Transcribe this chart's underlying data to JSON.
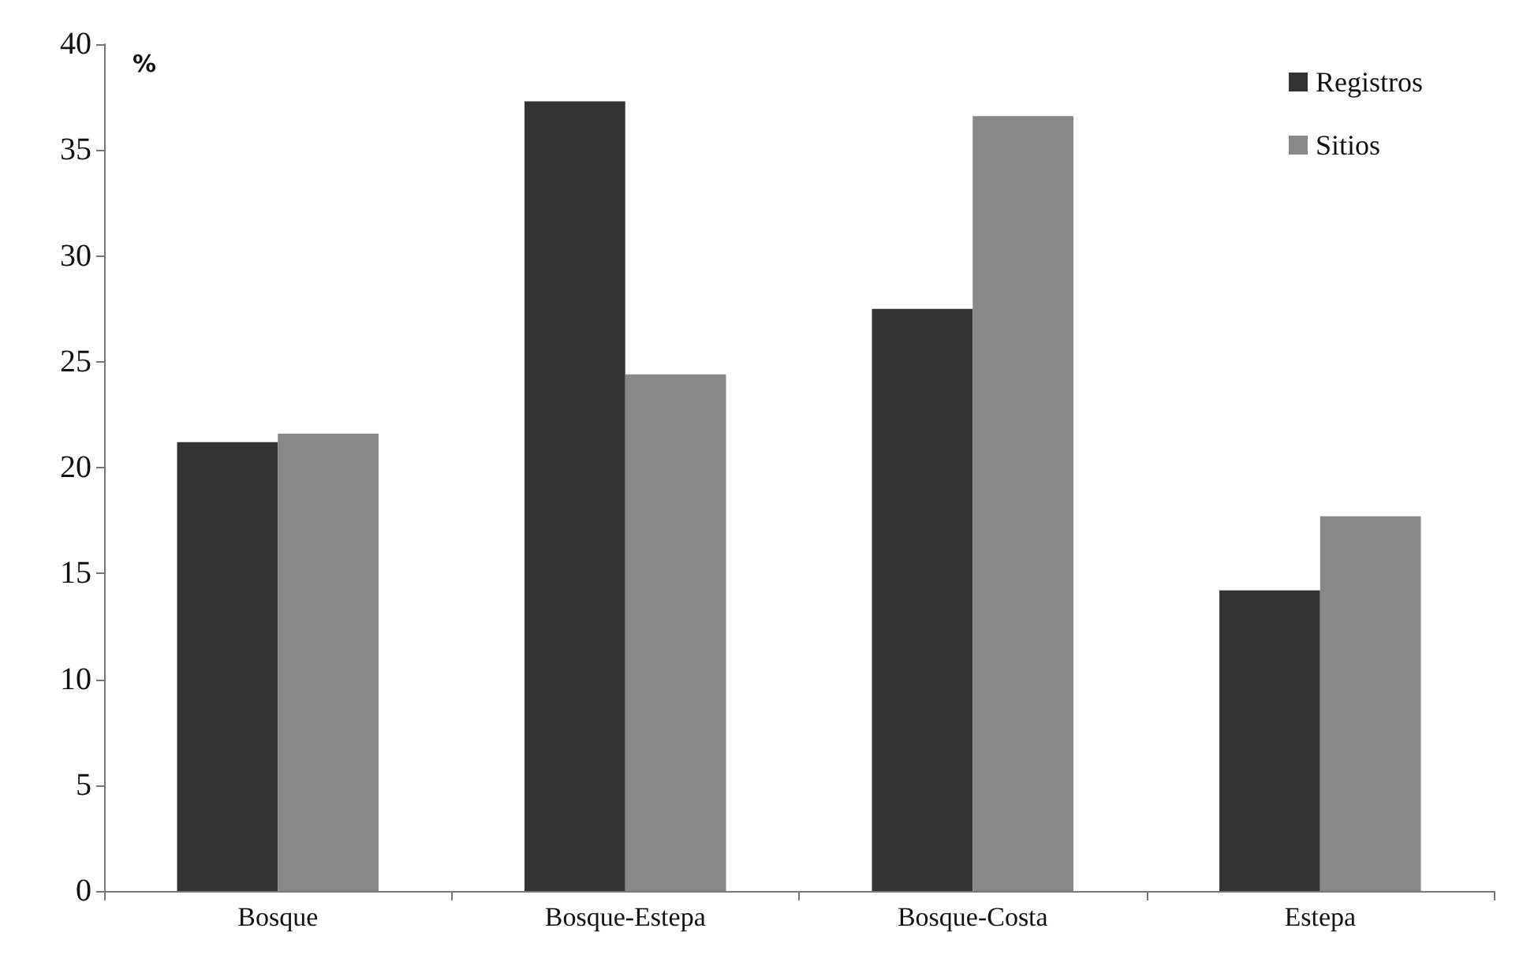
{
  "chart_data": {
    "type": "bar",
    "ylabel": "%",
    "categories": [
      "Bosque",
      "Bosque-Estepa",
      "Bosque-Costa",
      "Estepa"
    ],
    "series": [
      {
        "name": "Registros",
        "color": "#333333",
        "values": [
          21.2,
          37.3,
          27.5,
          14.2
        ]
      },
      {
        "name": "Sitios",
        "color": "#888888",
        "values": [
          21.6,
          24.4,
          36.6,
          17.7
        ]
      }
    ],
    "ylim": [
      0,
      40
    ],
    "yticks": [
      0,
      5,
      10,
      15,
      20,
      25,
      30,
      35,
      40
    ],
    "grid": false,
    "legend": "top right"
  }
}
